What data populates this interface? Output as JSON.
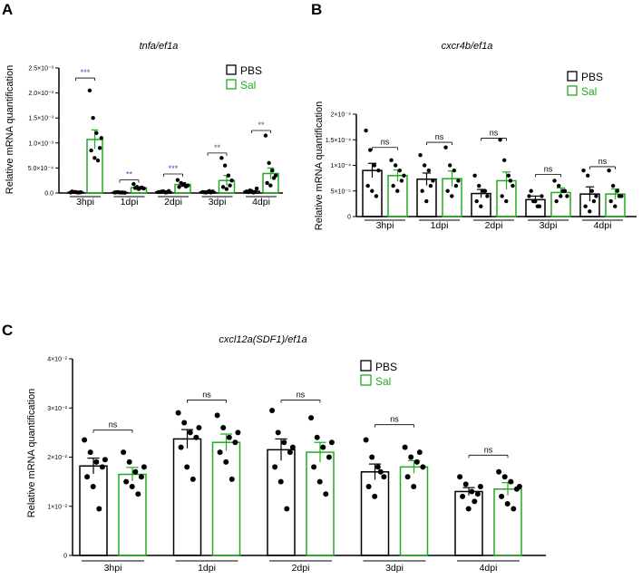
{
  "chart_data": [
    {
      "panel": "A",
      "type": "bar",
      "title": "tnfa/ef1a",
      "ylabel": "Relative mRNA quantification",
      "ylim": [
        0,
        0.0025
      ],
      "yticks": [
        {
          "value": 0,
          "label": "0.0"
        },
        {
          "value": 0.0005,
          "label": "5.0×10⁻⁴"
        },
        {
          "value": 0.001,
          "label": "1.0×10⁻³"
        },
        {
          "value": 0.0015,
          "label": "1.5×10⁻³"
        },
        {
          "value": 0.002,
          "label": "2.0×10⁻³"
        },
        {
          "value": 0.0025,
          "label": "2.5×10⁻³"
        }
      ],
      "categories": [
        "3hpi",
        "1dpi",
        "2dpi",
        "3dpi",
        "4dpi"
      ],
      "series": [
        {
          "name": "PBS",
          "color": "#000000",
          "values": [
            1.5e-05,
            1e-05,
            2.5e-05,
            2e-05,
            3.5e-05
          ],
          "errors": [
            5e-06,
            5e-06,
            8e-06,
            6e-06,
            1e-05
          ],
          "points": [
            [
              1e-05,
              2e-05,
              1e-05,
              1.5e-05,
              3e-05,
              2e-05,
              1e-05
            ],
            [
              1e-05,
              2e-05,
              1e-05,
              5e-06,
              1.5e-05,
              1e-05,
              1e-05
            ],
            [
              2e-05,
              3e-05,
              1e-05,
              4e-05,
              2e-05,
              3e-05,
              1.5e-05
            ],
            [
              2e-05,
              1e-05,
              4e-05,
              3e-05,
              1.5e-05,
              2e-05,
              1e-05
            ],
            [
              3e-05,
              5e-05,
              1e-05,
              9e-05,
              2e-05,
              4e-05,
              2e-05
            ]
          ]
        },
        {
          "name": "Sal",
          "color": "#22aa22",
          "values": [
            0.00107,
            0.000105,
            0.00017,
            0.00025,
            0.00039
          ],
          "errors": [
            0.00019,
            1.5e-05,
            2.5e-05,
            0.0001,
            0.00011
          ],
          "points": [
            [
              0.00205,
              0.0015,
              0.0012,
              0.0009,
              0.00085,
              0.0007,
              0.00065,
              0.0011
            ],
            [
              0.00018,
              0.00012,
              0.0001,
              9e-05,
              0.0001,
              8e-05,
              0.00011
            ],
            [
              0.00026,
              0.0002,
              0.00018,
              0.00015,
              0.00012,
              0.00016,
              0.00013
            ],
            [
              0.0007,
              0.00055,
              0.00035,
              0.00025,
              0.00012,
              8e-05,
              0.00015
            ],
            [
              0.00115,
              0.0006,
              0.00045,
              0.00035,
              0.0002,
              0.00015,
              0.0003
            ]
          ]
        }
      ],
      "significance": [
        "***",
        "**",
        "***",
        "**",
        "**"
      ],
      "sig_color": "#3355aa"
    },
    {
      "panel": "B",
      "type": "bar",
      "title": "cxcr4b/ef1a",
      "ylabel": "Relative mRNA quantification",
      "ylim": [
        0,
        0.0002
      ],
      "yticks": [
        {
          "value": 0,
          "label": "0"
        },
        {
          "value": 5e-05,
          "label": "5×10⁻⁵"
        },
        {
          "value": 0.0001,
          "label": "1×10⁻⁴"
        },
        {
          "value": 0.00015,
          "label": "1.5×10⁻⁴"
        },
        {
          "value": 0.0002,
          "label": "2×10⁻⁴"
        }
      ],
      "categories": [
        "3hpi",
        "1dpi",
        "2dpi",
        "3dpi",
        "4dpi"
      ],
      "series": [
        {
          "name": "PBS",
          "color": "#000000",
          "values": [
            9e-05,
            7.3e-05,
            4.5e-05,
            3.3e-05,
            4.4e-05
          ],
          "errors": [
            1.4e-05,
            1.2e-05,
            8e-06,
            7e-06,
            1.4e-05
          ],
          "points": [
            [
              0.000168,
              0.00013,
              0.0001,
              9e-05,
              6e-05,
              5e-05,
              4e-05
            ],
            [
              0.00012,
              0.0001,
              9e-05,
              7e-05,
              5e-05,
              3e-05,
              6e-05
            ],
            [
              8e-05,
              6e-05,
              5e-05,
              4e-05,
              3e-05,
              2e-05,
              5e-05
            ],
            [
              4e-05,
              3e-05,
              2e-05,
              4e-05,
              5e-05,
              3e-05,
              2e-05
            ],
            [
              9e-05,
              8e-05,
              5e-05,
              4e-05,
              2e-05,
              1e-05,
              3e-05
            ]
          ]
        },
        {
          "name": "Sal",
          "color": "#22aa22",
          "values": [
            8e-05,
            7.4e-05,
            7e-05,
            4.7e-05,
            4.4e-05
          ],
          "errors": [
            1.1e-05,
            1.5e-05,
            1.7e-05,
            9e-06,
            1e-05
          ],
          "points": [
            [
              0.00011,
              0.0001,
              9e-05,
              8e-05,
              6e-05,
              5e-05,
              7e-05
            ],
            [
              0.000135,
              0.0001,
              9e-05,
              7e-05,
              5e-05,
              4e-05,
              6e-05
            ],
            [
              0.00015,
              0.00011,
              8e-05,
              6e-05,
              4e-05,
              3e-05,
              7e-05
            ],
            [
              7e-05,
              6e-05,
              5e-05,
              4e-05,
              3e-05,
              4e-05,
              5e-05
            ],
            [
              9e-05,
              6e-05,
              5e-05,
              4e-05,
              3e-05,
              2e-05,
              4e-05
            ]
          ]
        }
      ],
      "significance": [
        "ns",
        "ns",
        "ns",
        "ns",
        "ns"
      ],
      "sig_color": "#000000"
    },
    {
      "panel": "C",
      "type": "bar",
      "title": "cxcl12a(SDF1)/ef1a",
      "ylabel": "Relative mRNA quantification",
      "ylim": [
        0,
        0.04
      ],
      "yticks": [
        {
          "value": 0,
          "label": "0"
        },
        {
          "value": 0.01,
          "label": "1×10⁻²"
        },
        {
          "value": 0.02,
          "label": "2×10⁻²"
        },
        {
          "value": 0.03,
          "label": "3×10⁻²"
        },
        {
          "value": 0.04,
          "label": "4×10⁻²"
        }
      ],
      "categories": [
        "3hpi",
        "1dpi",
        "2dpi",
        "3dpi",
        "4dpi"
      ],
      "series": [
        {
          "name": "PBS",
          "color": "#000000",
          "values": [
            0.0182,
            0.0237,
            0.0215,
            0.017,
            0.013
          ],
          "errors": [
            0.0016,
            0.0019,
            0.0022,
            0.0016,
            0.0008
          ],
          "points": [
            [
              0.0235,
              0.021,
              0.019,
              0.018,
              0.016,
              0.014,
              0.0095,
              0.0195
            ],
            [
              0.029,
              0.027,
              0.025,
              0.024,
              0.022,
              0.018,
              0.0155,
              0.026
            ],
            [
              0.0295,
              0.025,
              0.023,
              0.021,
              0.018,
              0.015,
              0.0095,
              0.022
            ],
            [
              0.0235,
              0.02,
              0.018,
              0.016,
              0.014,
              0.012,
              0.017
            ],
            [
              0.016,
              0.0145,
              0.013,
              0.0125,
              0.012,
              0.0095,
              0.011,
              0.014
            ]
          ]
        },
        {
          "name": "Sal",
          "color": "#22aa22",
          "values": [
            0.0165,
            0.023,
            0.021,
            0.018,
            0.0135
          ],
          "errors": [
            0.0014,
            0.0017,
            0.002,
            0.0013,
            0.0013
          ],
          "points": [
            [
              0.021,
              0.019,
              0.017,
              0.016,
              0.015,
              0.014,
              0.0125,
              0.018
            ],
            [
              0.0285,
              0.026,
              0.024,
              0.023,
              0.021,
              0.019,
              0.0155,
              0.025
            ],
            [
              0.028,
              0.024,
              0.022,
              0.02,
              0.018,
              0.015,
              0.0125,
              0.023
            ],
            [
              0.022,
              0.02,
              0.019,
              0.018,
              0.016,
              0.014,
              0.021
            ],
            [
              0.017,
              0.016,
              0.015,
              0.0135,
              0.012,
              0.0105,
              0.0095,
              0.014
            ]
          ]
        }
      ],
      "significance": [
        "ns",
        "ns",
        "ns",
        "ns",
        "ns"
      ],
      "sig_color": "#000000"
    }
  ],
  "legend": {
    "pbs": "PBS",
    "sal": "Sal"
  },
  "labels": {
    "a": {
      "letter": "A",
      "title": "tnfa/ef1a"
    },
    "b": {
      "letter": "B",
      "title": "cxcr4b/ef1a"
    },
    "c": {
      "letter": "C",
      "title": "cxcl12a(SDF1)/ef1a"
    },
    "ylabel": "Relative mRNA quantification"
  },
  "colors": {
    "pbs": "#000000",
    "sal": "#22aa22"
  }
}
